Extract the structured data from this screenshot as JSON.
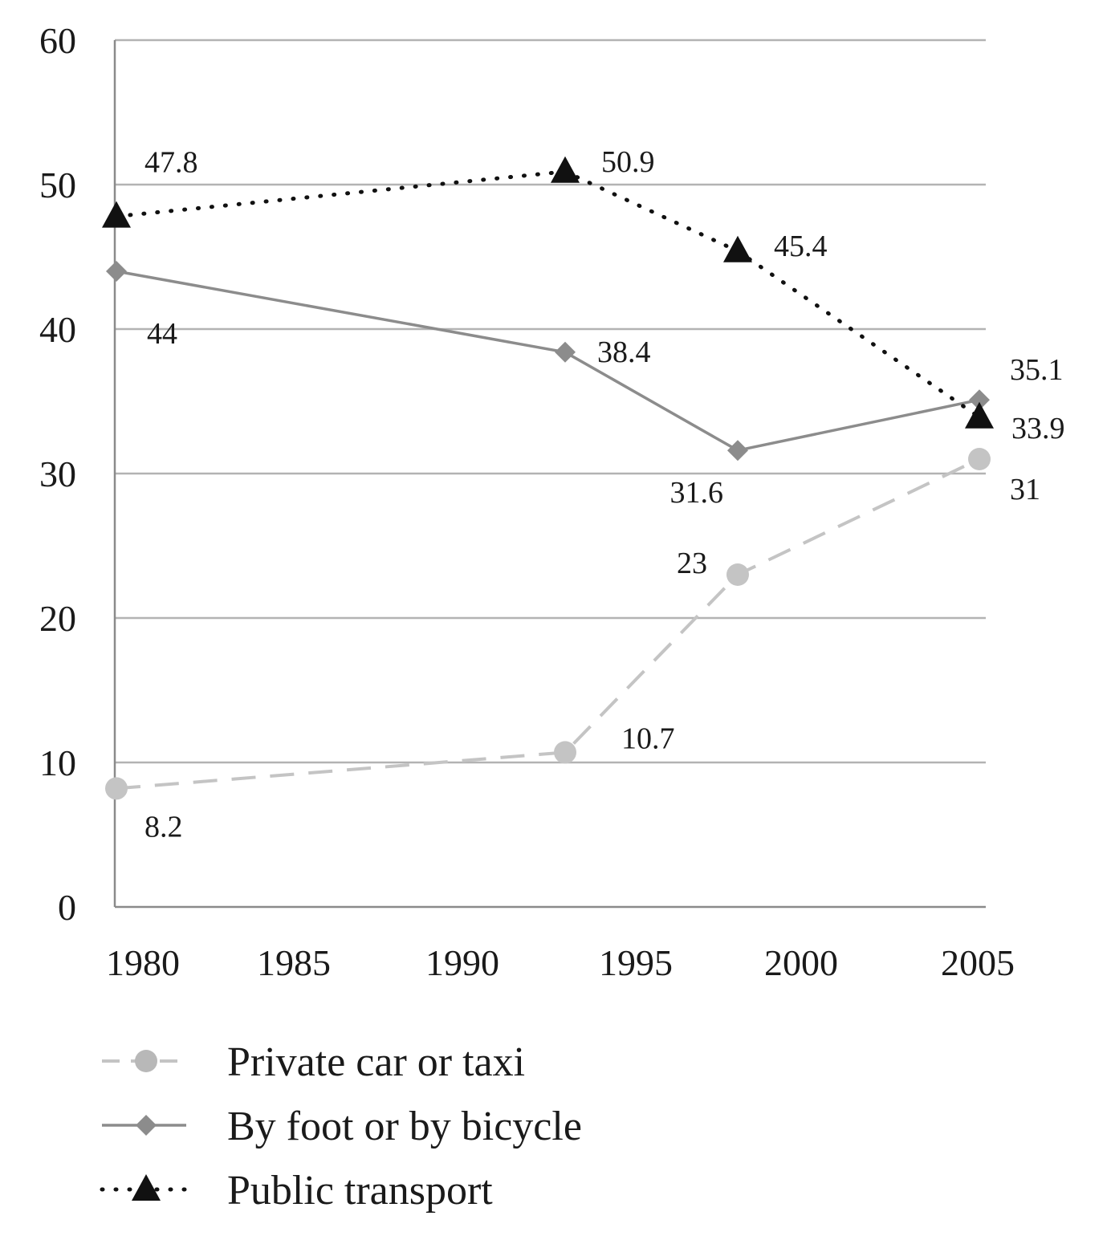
{
  "chart_data": {
    "type": "line",
    "title": "",
    "xlabel": "",
    "ylabel": "",
    "xlim": [
      1980,
      2005
    ],
    "ylim": [
      0,
      60
    ],
    "x_ticks": [
      1980,
      1985,
      1990,
      1995,
      2000,
      2005
    ],
    "y_ticks": [
      0,
      10,
      20,
      30,
      40,
      50,
      60
    ],
    "grid": "horizontal",
    "legend_position": "bottom-left",
    "series": [
      {
        "name": "Private car or taxi",
        "style": "dashed",
        "marker": "circle",
        "color": "#c4c4c4",
        "x": [
          1980,
          1993,
          1998,
          2005
        ],
        "values": [
          8.2,
          10.7,
          23,
          31
        ],
        "labels": [
          "8.2",
          "10.7",
          "23",
          "31"
        ]
      },
      {
        "name": "By foot or by bicycle",
        "style": "solid",
        "marker": "diamond",
        "color": "#8c8c8c",
        "x": [
          1980,
          1993,
          1998,
          2005
        ],
        "values": [
          44,
          38.4,
          31.6,
          35.1
        ],
        "labels": [
          "44",
          "38.4",
          "31.6",
          "35.1"
        ]
      },
      {
        "name": "Public transport",
        "style": "dotted",
        "marker": "triangle",
        "color": "#111111",
        "x": [
          1980,
          1993,
          1998,
          2005
        ],
        "values": [
          47.8,
          50.9,
          45.4,
          33.9
        ],
        "labels": [
          "47.8",
          "50.9",
          "45.4",
          "33.9"
        ]
      }
    ]
  }
}
